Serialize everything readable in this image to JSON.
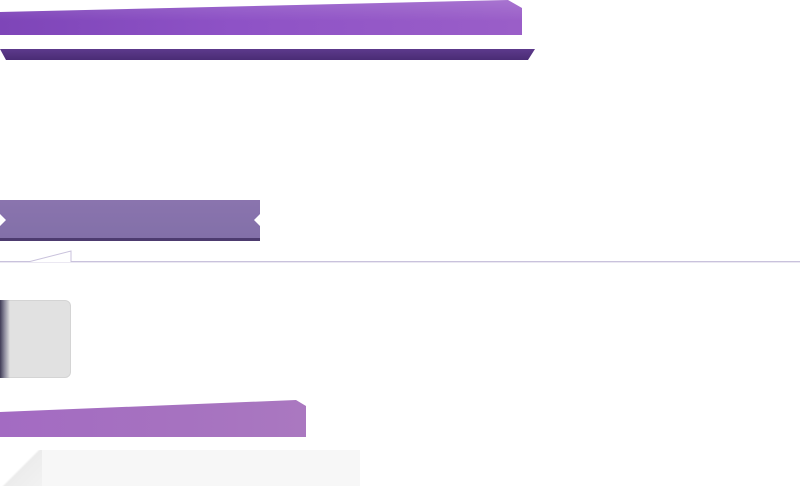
{
  "colors": {
    "top_ribbon": "#8e52c6",
    "top_band": "#4a2c75",
    "mid_tab": "#8672aa",
    "mid_tab_shadow": "#4d3b6f",
    "divider": "#c9c2dc",
    "gray_box": "#e1e1e1",
    "low_ribbon": "#a672c0",
    "bottom_panel": "#f7f7f7"
  },
  "icons": []
}
